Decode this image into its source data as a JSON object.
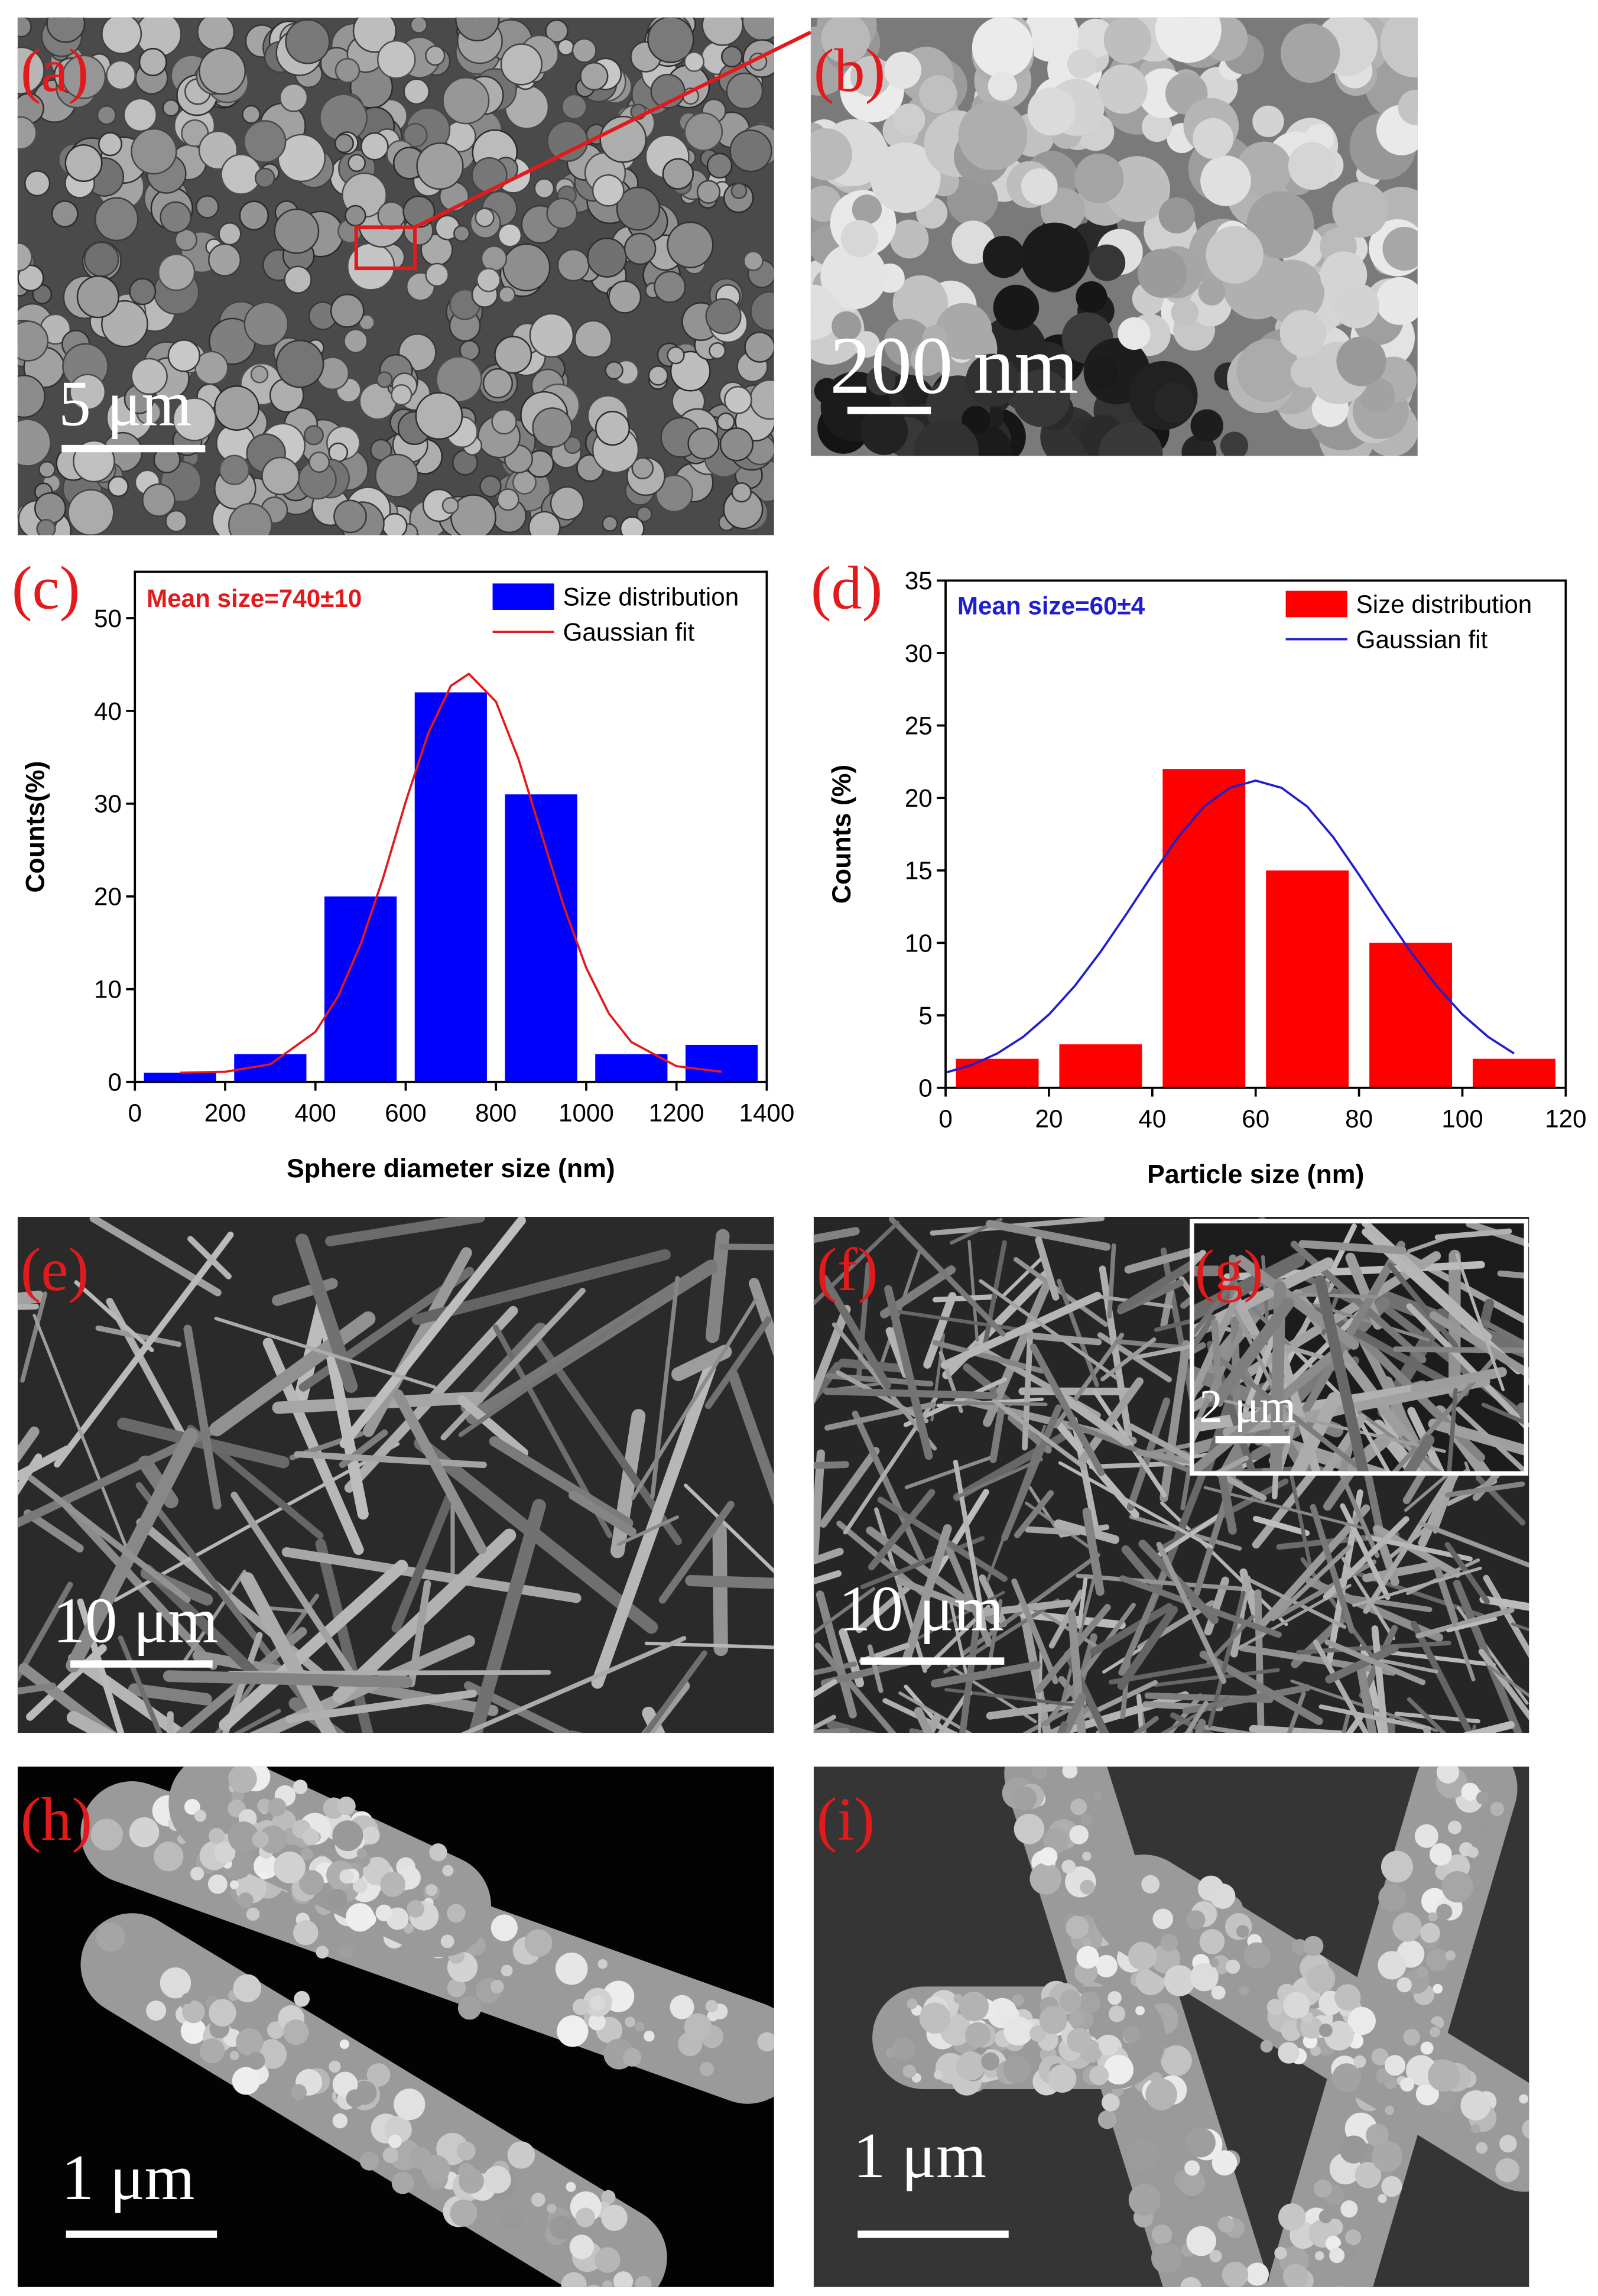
{
  "panels": [
    {
      "label": "(a)",
      "scale_bar": "5 μm"
    },
    {
      "label": "(b)",
      "scale_bar": "200 nm"
    },
    {
      "label": "(e)",
      "scale_bar": "10 μm"
    },
    {
      "label": "(f)",
      "scale_bar": "10 μm"
    },
    {
      "label": "(g)",
      "scale_bar": "2 μm"
    },
    {
      "label": "(h)",
      "scale_bar": "1 μm"
    },
    {
      "label": "(i)",
      "scale_bar": "1 μm"
    }
  ],
  "chart_data": [
    {
      "type": "bar",
      "panel_label": "(c)",
      "annotation": "Mean size=740±10",
      "annotation_color": "#e31a1c",
      "x_label": "Sphere diameter size (nm)",
      "y_label": "Counts(%)",
      "xlim": [
        0,
        1400
      ],
      "ylim": [
        0,
        55
      ],
      "xticks": [
        0,
        200,
        400,
        600,
        800,
        1000,
        1200,
        1400
      ],
      "yticks": [
        0,
        10,
        20,
        30,
        40,
        50
      ],
      "series": [
        {
          "name": "Size distribution",
          "type": "bar",
          "color": "#0000ff",
          "x": [
            100,
            300,
            500,
            700,
            900,
            1100,
            1300
          ],
          "values": [
            1,
            3,
            20,
            42,
            31,
            3,
            4
          ]
        },
        {
          "name": "Gaussian fit",
          "type": "line",
          "color": "#e31a1c",
          "x": [
            100,
            200,
            300,
            400,
            450,
            500,
            550,
            600,
            650,
            700,
            740,
            800,
            850,
            900,
            950,
            1000,
            1050,
            1100,
            1200,
            1300
          ],
          "values": [
            1.0,
            1.1,
            1.9,
            5.4,
            9.2,
            14.8,
            22,
            30.2,
            37.6,
            42.7,
            44,
            41,
            34.8,
            26.9,
            19,
            12.3,
            7.4,
            4.3,
            1.7,
            1.1
          ]
        }
      ]
    },
    {
      "type": "bar",
      "panel_label": "(d)",
      "annotation": "Mean size=60±4",
      "annotation_color": "#1f1fd0",
      "x_label": "Particle size (nm)",
      "y_label": "Counts (%)",
      "xlim": [
        0,
        120
      ],
      "ylim": [
        0,
        35
      ],
      "xticks": [
        0,
        20,
        40,
        60,
        80,
        100,
        120
      ],
      "yticks": [
        0,
        5,
        10,
        15,
        20,
        25,
        30,
        35
      ],
      "series": [
        {
          "name": "Size distribution",
          "type": "bar",
          "color": "#ff0000",
          "x": [
            10,
            30,
            50,
            70,
            90,
            110
          ],
          "values": [
            2,
            3,
            22,
            15,
            10,
            2
          ]
        },
        {
          "name": "Gaussian fit",
          "type": "line",
          "color": "#1f1fd0",
          "x": [
            0,
            5,
            10,
            15,
            20,
            25,
            30,
            35,
            40,
            45,
            50,
            55,
            60,
            65,
            70,
            75,
            80,
            85,
            90,
            95,
            100,
            105,
            110
          ],
          "values": [
            1.05,
            1.57,
            2.37,
            3.51,
            5.06,
            7.03,
            9.39,
            12.0,
            14.7,
            17.3,
            19.4,
            20.7,
            21.2,
            20.7,
            19.4,
            17.3,
            14.7,
            12.0,
            9.39,
            7.03,
            5.06,
            3.51,
            2.37
          ]
        }
      ]
    }
  ]
}
